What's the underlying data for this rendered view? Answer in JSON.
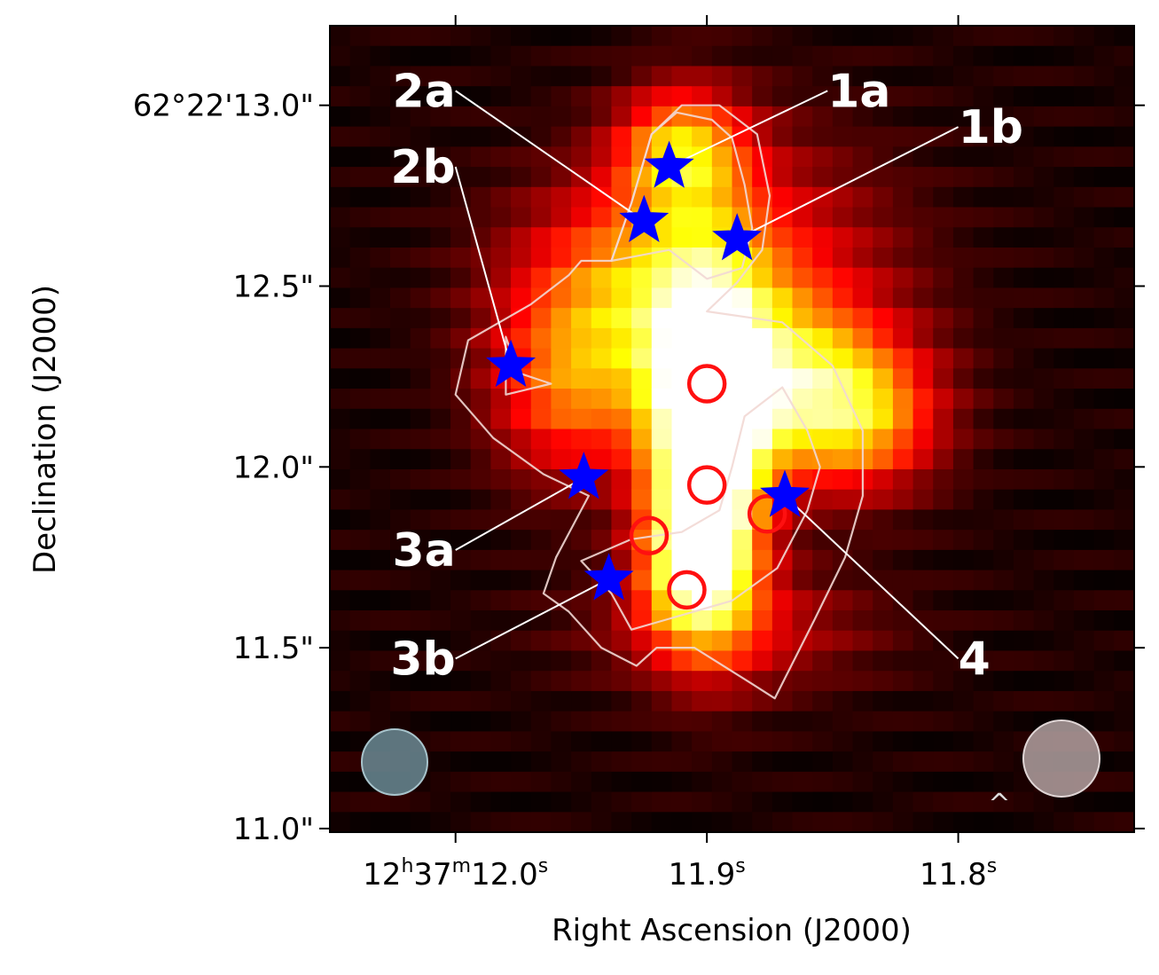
{
  "chart_data": {
    "type": "heatmap",
    "title": "",
    "xlabel": "Right Ascension (J2000)",
    "ylabel": "Declination (J2000)",
    "colormap": "hot",
    "xlim": [
      12.05,
      11.73
    ],
    "ylim": [
      10.99,
      13.22
    ],
    "x_ticks": [
      {
        "value": 12.0,
        "label_main": "12",
        "sup1": "h",
        "mid": "37",
        "sup2": "m",
        "end": "12.0",
        "sup3": "s"
      },
      {
        "value": 11.9,
        "label_main": "11.9",
        "sup3": "s"
      },
      {
        "value": 11.8,
        "label_main": "11.8",
        "sup3": "s"
      }
    ],
    "y_ticks": [
      {
        "value": 13.0,
        "label": "62°22'13.0\""
      },
      {
        "value": 12.5,
        "label": "12.5\""
      },
      {
        "value": 12.0,
        "label": "12.0\""
      },
      {
        "value": 11.5,
        "label": "11.5\""
      },
      {
        "value": 11.0,
        "label": "11.0\""
      }
    ],
    "emission_blobs": [
      {
        "ra": 11.9,
        "dec": 12.05,
        "sra": 0.016,
        "sdec": 0.3,
        "amp": 1.15
      },
      {
        "ra": 11.905,
        "dec": 11.75,
        "sra": 0.015,
        "sdec": 0.14,
        "amp": 0.55
      },
      {
        "ra": 11.865,
        "dec": 12.22,
        "sra": 0.03,
        "sdec": 0.16,
        "amp": 0.55
      },
      {
        "ra": 11.838,
        "dec": 12.12,
        "sra": 0.022,
        "sdec": 0.14,
        "amp": 0.4
      },
      {
        "ra": 11.91,
        "dec": 12.88,
        "sra": 0.018,
        "sdec": 0.12,
        "amp": 0.55
      },
      {
        "ra": 11.93,
        "dec": 12.5,
        "sra": 0.035,
        "sdec": 0.2,
        "amp": 0.45
      },
      {
        "ra": 11.955,
        "dec": 12.2,
        "sra": 0.022,
        "sdec": 0.18,
        "amp": 0.4
      },
      {
        "ra": 11.88,
        "dec": 12.55,
        "sra": 0.04,
        "sdec": 0.25,
        "amp": 0.3
      },
      {
        "ra": 11.89,
        "dec": 11.55,
        "sra": 0.04,
        "sdec": 0.12,
        "amp": 0.25
      }
    ],
    "stars": [
      {
        "id": "1a",
        "ra": 11.915,
        "dec": 12.83
      },
      {
        "id": "1b",
        "ra": 11.888,
        "dec": 12.63
      },
      {
        "id": "2a",
        "ra": 11.925,
        "dec": 12.68
      },
      {
        "id": "2b",
        "ra": 11.978,
        "dec": 12.28
      },
      {
        "id": "3a",
        "ra": 11.949,
        "dec": 11.97
      },
      {
        "id": "3b",
        "ra": 11.939,
        "dec": 11.69
      },
      {
        "id": "4",
        "ra": 11.869,
        "dec": 11.92
      }
    ],
    "red_circles": [
      {
        "ra": 11.9,
        "dec": 12.23
      },
      {
        "ra": 11.9,
        "dec": 11.95
      },
      {
        "ra": 11.876,
        "dec": 11.87
      },
      {
        "ra": 11.923,
        "dec": 11.81
      },
      {
        "ra": 11.908,
        "dec": 11.66
      }
    ],
    "annotations": [
      {
        "text": "1a",
        "star": "1a",
        "tx": 11.852,
        "ty": 13.04,
        "anchor": "start"
      },
      {
        "text": "1b",
        "star": "1b",
        "tx": 11.8,
        "ty": 12.94,
        "anchor": "start"
      },
      {
        "text": "2a",
        "star": "2a",
        "tx": 12.0,
        "ty": 13.04,
        "anchor": "end"
      },
      {
        "text": "2b",
        "star": "2b",
        "tx": 12.0,
        "ty": 12.83,
        "anchor": "end"
      },
      {
        "text": "3a",
        "star": "3a",
        "tx": 12.0,
        "ty": 11.77,
        "anchor": "end"
      },
      {
        "text": "3b",
        "star": "3b",
        "tx": 12.0,
        "ty": 11.47,
        "anchor": "end"
      },
      {
        "text": "4",
        "star": "4",
        "tx": 11.8,
        "ty": 11.47,
        "anchor": "start"
      }
    ],
    "contours": [
      [
        [
          11.938,
          12.57
        ],
        [
          11.93,
          12.73
        ],
        [
          11.922,
          12.92
        ],
        [
          11.912,
          12.98
        ],
        [
          11.898,
          12.96
        ],
        [
          11.89,
          12.91
        ],
        [
          11.885,
          12.78
        ],
        [
          11.882,
          12.66
        ],
        [
          11.886,
          12.55
        ],
        [
          11.9,
          12.52
        ],
        [
          11.915,
          12.6
        ]
      ],
      [
        [
          11.938,
          12.57
        ],
        [
          11.93,
          12.73
        ],
        [
          11.922,
          12.92
        ],
        [
          11.91,
          13.0
        ],
        [
          11.895,
          13.0
        ],
        [
          11.88,
          12.92
        ],
        [
          11.875,
          12.75
        ],
        [
          11.878,
          12.6
        ],
        [
          11.888,
          12.51
        ],
        [
          11.9,
          12.43
        ],
        [
          11.87,
          12.4
        ],
        [
          11.85,
          12.28
        ],
        [
          11.838,
          12.1
        ],
        [
          11.838,
          11.92
        ],
        [
          11.845,
          11.75
        ],
        [
          11.857,
          11.58
        ],
        [
          11.873,
          11.36
        ],
        [
          11.882,
          11.4
        ],
        [
          11.905,
          11.5
        ],
        [
          11.92,
          11.5
        ],
        [
          11.928,
          11.45
        ],
        [
          11.942,
          11.5
        ],
        [
          11.955,
          11.6
        ],
        [
          11.965,
          11.65
        ],
        [
          11.96,
          11.75
        ],
        [
          11.947,
          11.92
        ],
        [
          11.965,
          11.98
        ],
        [
          11.985,
          12.08
        ],
        [
          12.0,
          12.2
        ],
        [
          11.995,
          12.35
        ],
        [
          11.97,
          12.45
        ],
        [
          11.955,
          12.53
        ],
        [
          11.95,
          12.57
        ]
      ],
      [
        [
          11.98,
          12.36
        ],
        [
          11.98,
          12.2
        ],
        [
          11.962,
          12.23
        ],
        [
          11.975,
          12.26
        ]
      ],
      [
        [
          11.93,
          11.55
        ],
        [
          11.938,
          11.65
        ],
        [
          11.95,
          11.74
        ],
        [
          11.93,
          11.8
        ],
        [
          11.91,
          11.82
        ],
        [
          11.895,
          11.88
        ],
        [
          11.89,
          12.0
        ],
        [
          11.885,
          12.14
        ],
        [
          11.87,
          12.22
        ],
        [
          11.86,
          12.1
        ],
        [
          11.855,
          12.0
        ],
        [
          11.86,
          11.88
        ],
        [
          11.872,
          11.72
        ],
        [
          11.89,
          11.63
        ],
        [
          11.905,
          11.6
        ],
        [
          11.915,
          11.58
        ]
      ]
    ],
    "beams": [
      {
        "position": "bottom-left",
        "color": "#6a8a94"
      },
      {
        "position": "bottom-right",
        "color": "#b0a0a0"
      }
    ],
    "caret_symbol": "^"
  }
}
